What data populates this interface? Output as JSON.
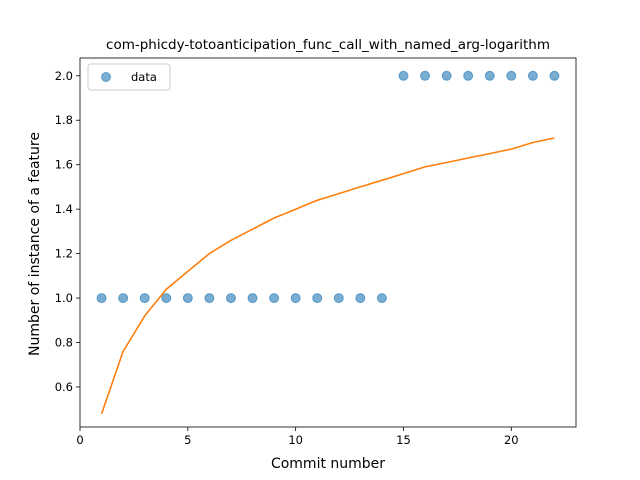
{
  "chart_data": {
    "type": "scatter",
    "title": "com-phicdy-totoanticipation_func_call_with_named_arg-logarithm",
    "xlabel": "Commit number",
    "ylabel": "Number of instance of a feature",
    "xlim": [
      0,
      23
    ],
    "ylim": [
      0.42,
      2.08
    ],
    "x_ticks": [
      0,
      5,
      10,
      15,
      20
    ],
    "y_ticks": [
      0.6,
      0.8,
      1.0,
      1.2,
      1.4,
      1.6,
      1.8,
      2.0
    ],
    "x_tick_labels": [
      "0",
      "5",
      "10",
      "15",
      "20"
    ],
    "y_tick_labels": [
      "0.6",
      "0.8",
      "1.0",
      "1.2",
      "1.4",
      "1.6",
      "1.8",
      "2.0"
    ],
    "grid": false,
    "legend_position": "upper-left",
    "series": [
      {
        "name": "data",
        "kind": "scatter",
        "color": "#1f77b4",
        "x": [
          1,
          2,
          3,
          4,
          5,
          6,
          7,
          8,
          9,
          10,
          11,
          12,
          13,
          14,
          15,
          16,
          17,
          18,
          19,
          20,
          21,
          22
        ],
        "y": [
          1,
          1,
          1,
          1,
          1,
          1,
          1,
          1,
          1,
          1,
          1,
          1,
          1,
          1,
          2,
          2,
          2,
          2,
          2,
          2,
          2,
          2
        ]
      },
      {
        "kind": "line",
        "color": "#ff7f0e",
        "x": [
          1,
          2,
          3,
          4,
          5,
          6,
          7,
          8,
          9,
          10,
          11,
          12,
          13,
          14,
          15,
          16,
          17,
          18,
          19,
          20,
          21,
          22
        ],
        "y": [
          0.48,
          0.76,
          0.92,
          1.04,
          1.12,
          1.2,
          1.26,
          1.31,
          1.36,
          1.4,
          1.44,
          1.47,
          1.5,
          1.53,
          1.56,
          1.59,
          1.61,
          1.63,
          1.65,
          1.67,
          1.7,
          1.72
        ]
      }
    ]
  }
}
